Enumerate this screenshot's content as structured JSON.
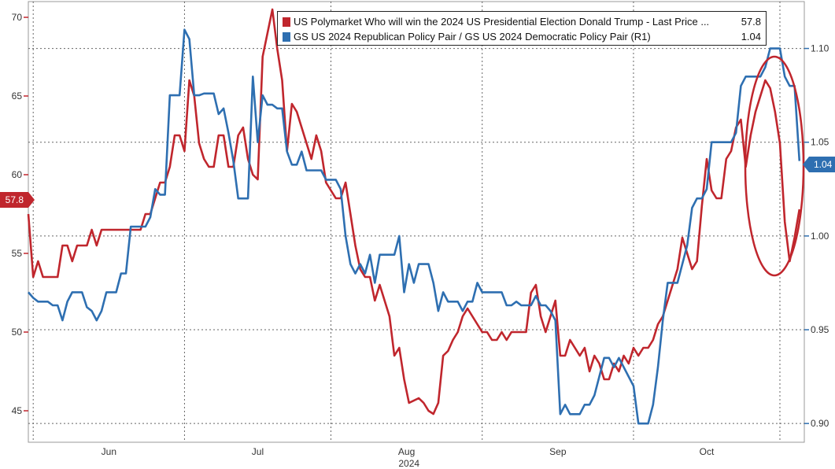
{
  "chart_data": {
    "type": "line",
    "title": "",
    "xlabel": "2024",
    "x_ticks": [
      "Jun",
      "Jul",
      "Aug",
      "Sep",
      "Oct"
    ],
    "left_axis": {
      "ylim": [
        43,
        71
      ],
      "ticks": [
        45,
        50,
        55,
        60,
        65,
        70
      ]
    },
    "right_axis": {
      "ylim": [
        0.89,
        1.125
      ],
      "ticks": [
        "0.90",
        "0.95",
        "1.00",
        "1.05",
        "1.10"
      ]
    },
    "x_range_days": [
      0,
      159
    ],
    "series": [
      {
        "name": "US Polymarket Who will win the 2024 US Presidential Election Donald Trump - Last Price ...",
        "last_value": "57.8",
        "axis": "left",
        "color": "#c0262d",
        "points": [
          [
            0,
            57.5
          ],
          [
            1,
            53.5
          ],
          [
            2,
            54.5
          ],
          [
            3,
            53.5
          ],
          [
            5,
            53.5
          ],
          [
            6,
            53.5
          ],
          [
            7,
            55.5
          ],
          [
            8,
            55.5
          ],
          [
            9,
            54.5
          ],
          [
            10,
            55.5
          ],
          [
            12,
            55.5
          ],
          [
            13,
            56.5
          ],
          [
            14,
            55.5
          ],
          [
            15,
            56.5
          ],
          [
            20,
            56.5
          ],
          [
            23,
            56.5
          ],
          [
            24,
            57.5
          ],
          [
            25,
            57.5
          ],
          [
            26,
            58.5
          ],
          [
            27,
            59.5
          ],
          [
            28,
            59.5
          ],
          [
            29,
            60.5
          ],
          [
            30,
            62.5
          ],
          [
            31,
            62.5
          ],
          [
            32,
            61.5
          ],
          [
            33,
            66
          ],
          [
            34,
            65
          ],
          [
            35,
            62
          ],
          [
            36,
            61
          ],
          [
            37,
            60.5
          ],
          [
            38,
            60.5
          ],
          [
            39,
            62.5
          ],
          [
            40,
            62.5
          ],
          [
            41,
            60.5
          ],
          [
            42,
            60.5
          ],
          [
            43,
            62.5
          ],
          [
            44,
            63
          ],
          [
            45,
            61
          ],
          [
            46,
            60
          ],
          [
            47,
            59.7
          ],
          [
            48,
            67.5
          ],
          [
            49,
            69
          ],
          [
            50,
            70.5
          ],
          [
            51,
            68
          ],
          [
            52,
            66
          ],
          [
            53,
            61.5
          ],
          [
            54,
            64.5
          ],
          [
            55,
            64
          ],
          [
            56,
            63
          ],
          [
            57,
            62
          ],
          [
            58,
            61
          ],
          [
            59,
            62.5
          ],
          [
            60,
            61.5
          ],
          [
            61,
            59.5
          ],
          [
            62,
            59
          ],
          [
            63,
            58.5
          ],
          [
            64,
            58.5
          ],
          [
            65,
            59.5
          ],
          [
            66,
            57.5
          ],
          [
            67,
            55.5
          ],
          [
            68,
            54
          ],
          [
            69,
            53.5
          ],
          [
            70,
            53.5
          ],
          [
            71,
            52
          ],
          [
            72,
            53
          ],
          [
            73,
            52
          ],
          [
            74,
            51
          ],
          [
            75,
            48.5
          ],
          [
            76,
            49
          ],
          [
            77,
            47
          ],
          [
            78,
            45.5
          ],
          [
            80,
            45.8
          ],
          [
            81,
            45.5
          ],
          [
            82,
            45
          ],
          [
            83,
            44.8
          ],
          [
            84,
            45.5
          ],
          [
            85,
            48.5
          ],
          [
            86,
            48.8
          ],
          [
            87,
            49.5
          ],
          [
            88,
            50
          ],
          [
            89,
            51
          ],
          [
            90,
            51.5
          ],
          [
            91,
            51
          ],
          [
            92,
            50.5
          ],
          [
            93,
            50
          ],
          [
            94,
            50
          ],
          [
            95,
            49.5
          ],
          [
            96,
            49.5
          ],
          [
            97,
            50
          ],
          [
            98,
            49.5
          ],
          [
            99,
            50
          ],
          [
            100,
            50
          ],
          [
            102,
            50
          ],
          [
            103,
            52.5
          ],
          [
            104,
            53
          ],
          [
            105,
            51
          ],
          [
            106,
            50
          ],
          [
            107,
            51
          ],
          [
            108,
            52
          ],
          [
            109,
            48.5
          ],
          [
            110,
            48.5
          ],
          [
            111,
            49.5
          ],
          [
            112,
            49
          ],
          [
            113,
            48.5
          ],
          [
            114,
            49
          ],
          [
            115,
            47.5
          ],
          [
            116,
            48.5
          ],
          [
            117,
            48
          ],
          [
            118,
            47
          ],
          [
            119,
            47
          ],
          [
            120,
            48
          ],
          [
            121,
            47.5
          ],
          [
            122,
            48.5
          ],
          [
            123,
            48
          ],
          [
            124,
            49
          ],
          [
            125,
            48.5
          ],
          [
            126,
            49
          ],
          [
            127,
            49
          ],
          [
            128,
            49.5
          ],
          [
            129,
            50.5
          ],
          [
            130,
            51
          ],
          [
            131,
            52
          ],
          [
            132,
            53
          ],
          [
            133,
            54
          ],
          [
            134,
            56
          ],
          [
            135,
            55
          ],
          [
            136,
            54
          ],
          [
            137,
            54.5
          ],
          [
            138,
            58
          ],
          [
            139,
            61
          ],
          [
            140,
            59
          ],
          [
            141,
            58.5
          ],
          [
            142,
            58.5
          ],
          [
            143,
            61
          ],
          [
            144,
            61.5
          ],
          [
            145,
            63
          ],
          [
            146,
            63.5
          ],
          [
            147,
            60.5
          ],
          [
            148,
            62.5
          ],
          [
            149,
            64
          ],
          [
            150,
            65
          ],
          [
            151,
            66
          ],
          [
            152,
            65.5
          ],
          [
            153,
            64
          ],
          [
            154,
            62
          ],
          [
            155,
            57
          ],
          [
            156,
            54.5
          ],
          [
            157,
            56
          ],
          [
            158,
            57.8
          ]
        ]
      },
      {
        "name": "GS US 2024 Republican Policy Pair / GS US 2024 Democratic Policy Pair (R1)",
        "last_value": "1.04",
        "axis": "right",
        "color": "#2e6fb1",
        "points": [
          [
            0,
            0.97
          ],
          [
            1,
            0.967
          ],
          [
            2,
            0.965
          ],
          [
            4,
            0.965
          ],
          [
            5,
            0.963
          ],
          [
            6,
            0.963
          ],
          [
            7,
            0.955
          ],
          [
            8,
            0.965
          ],
          [
            9,
            0.97
          ],
          [
            11,
            0.97
          ],
          [
            12,
            0.962
          ],
          [
            13,
            0.96
          ],
          [
            14,
            0.955
          ],
          [
            15,
            0.96
          ],
          [
            16,
            0.97
          ],
          [
            18,
            0.97
          ],
          [
            19,
            0.98
          ],
          [
            20,
            0.98
          ],
          [
            21,
            1.005
          ],
          [
            22,
            1.005
          ],
          [
            24,
            1.005
          ],
          [
            25,
            1.01
          ],
          [
            26,
            1.025
          ],
          [
            27,
            1.022
          ],
          [
            28,
            1.022
          ],
          [
            29,
            1.075
          ],
          [
            30,
            1.075
          ],
          [
            31,
            1.075
          ],
          [
            32,
            1.11
          ],
          [
            33,
            1.105
          ],
          [
            34,
            1.075
          ],
          [
            35,
            1.075
          ],
          [
            36,
            1.076
          ],
          [
            38,
            1.076
          ],
          [
            39,
            1.065
          ],
          [
            40,
            1.068
          ],
          [
            41,
            1.055
          ],
          [
            42,
            1.04
          ],
          [
            43,
            1.02
          ],
          [
            44,
            1.02
          ],
          [
            45,
            1.02
          ],
          [
            46,
            1.085
          ],
          [
            47,
            1.05
          ],
          [
            48,
            1.075
          ],
          [
            49,
            1.07
          ],
          [
            50,
            1.07
          ],
          [
            51,
            1.068
          ],
          [
            52,
            1.068
          ],
          [
            53,
            1.045
          ],
          [
            54,
            1.038
          ],
          [
            55,
            1.038
          ],
          [
            56,
            1.045
          ],
          [
            57,
            1.035
          ],
          [
            58,
            1.035
          ],
          [
            59,
            1.035
          ],
          [
            60,
            1.035
          ],
          [
            61,
            1.03
          ],
          [
            62,
            1.03
          ],
          [
            63,
            1.03
          ],
          [
            64,
            1.025
          ],
          [
            65,
            1.0
          ],
          [
            66,
            0.985
          ],
          [
            67,
            0.98
          ],
          [
            68,
            0.985
          ],
          [
            69,
            0.98
          ],
          [
            70,
            0.99
          ],
          [
            71,
            0.975
          ],
          [
            72,
            0.99
          ],
          [
            73,
            0.99
          ],
          [
            74,
            0.99
          ],
          [
            75,
            0.99
          ],
          [
            76,
            1.0
          ],
          [
            77,
            0.97
          ],
          [
            78,
            0.985
          ],
          [
            79,
            0.975
          ],
          [
            80,
            0.985
          ],
          [
            81,
            0.985
          ],
          [
            82,
            0.985
          ],
          [
            83,
            0.975
          ],
          [
            84,
            0.96
          ],
          [
            85,
            0.97
          ],
          [
            86,
            0.965
          ],
          [
            87,
            0.965
          ],
          [
            88,
            0.965
          ],
          [
            89,
            0.96
          ],
          [
            90,
            0.965
          ],
          [
            91,
            0.965
          ],
          [
            92,
            0.975
          ],
          [
            93,
            0.97
          ],
          [
            94,
            0.97
          ],
          [
            95,
            0.97
          ],
          [
            96,
            0.97
          ],
          [
            97,
            0.97
          ],
          [
            98,
            0.963
          ],
          [
            99,
            0.963
          ],
          [
            100,
            0.965
          ],
          [
            101,
            0.963
          ],
          [
            102,
            0.963
          ],
          [
            103,
            0.963
          ],
          [
            104,
            0.968
          ],
          [
            105,
            0.963
          ],
          [
            106,
            0.963
          ],
          [
            107,
            0.96
          ],
          [
            108,
            0.955
          ],
          [
            109,
            0.905
          ],
          [
            110,
            0.91
          ],
          [
            111,
            0.905
          ],
          [
            113,
            0.905
          ],
          [
            114,
            0.91
          ],
          [
            115,
            0.91
          ],
          [
            116,
            0.915
          ],
          [
            117,
            0.925
          ],
          [
            118,
            0.935
          ],
          [
            119,
            0.935
          ],
          [
            120,
            0.93
          ],
          [
            121,
            0.935
          ],
          [
            122,
            0.93
          ],
          [
            123,
            0.925
          ],
          [
            124,
            0.92
          ],
          [
            125,
            0.9
          ],
          [
            126,
            0.9
          ],
          [
            127,
            0.9
          ],
          [
            128,
            0.91
          ],
          [
            129,
            0.93
          ],
          [
            130,
            0.955
          ],
          [
            131,
            0.975
          ],
          [
            132,
            0.975
          ],
          [
            133,
            0.975
          ],
          [
            134,
            0.985
          ],
          [
            135,
            0.995
          ],
          [
            136,
            1.015
          ],
          [
            137,
            1.02
          ],
          [
            138,
            1.02
          ],
          [
            139,
            1.025
          ],
          [
            140,
            1.05
          ],
          [
            141,
            1.05
          ],
          [
            142,
            1.05
          ],
          [
            143,
            1.05
          ],
          [
            144,
            1.05
          ],
          [
            145,
            1.055
          ],
          [
            146,
            1.08
          ],
          [
            147,
            1.085
          ],
          [
            148,
            1.085
          ],
          [
            149,
            1.085
          ],
          [
            150,
            1.085
          ],
          [
            151,
            1.09
          ],
          [
            152,
            1.1
          ],
          [
            153,
            1.1
          ],
          [
            154,
            1.1
          ],
          [
            155,
            1.085
          ],
          [
            156,
            1.08
          ],
          [
            157,
            1.08
          ],
          [
            158,
            1.04
          ]
        ]
      }
    ],
    "annotation": {
      "type": "ellipse",
      "color": "#c0262d",
      "description": "highlight recent drop"
    },
    "grid": true,
    "legend_position": "top-right"
  }
}
